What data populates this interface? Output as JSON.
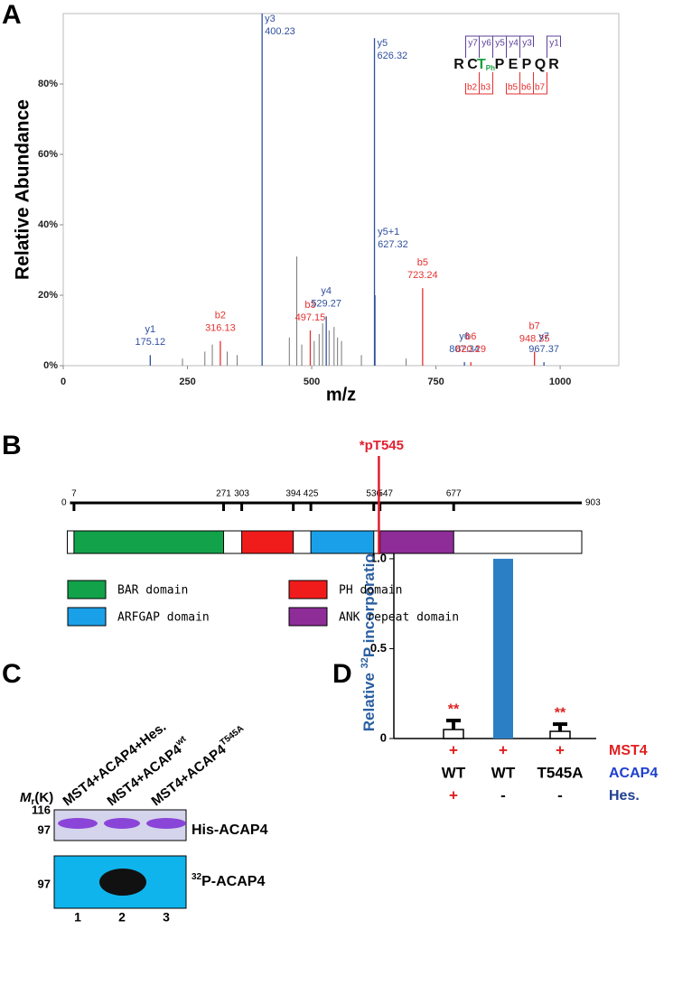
{
  "panel_labels": [
    "A",
    "B",
    "C",
    "D"
  ],
  "chart_data": [
    {
      "type": "spectrum",
      "x_label": "m/z",
      "y_label": "Relative Abundance",
      "xlim": [
        0,
        1118
      ],
      "xticks": [
        0,
        250,
        500,
        750,
        1000
      ],
      "ylim": [
        0,
        100
      ],
      "yticks": [
        {
          "value": 0,
          "label": "0%"
        },
        {
          "value": 20,
          "label": "20%"
        },
        {
          "value": 40,
          "label": "40%"
        },
        {
          "value": 60,
          "label": "60%"
        },
        {
          "value": 80,
          "label": "80%"
        }
      ],
      "peaks": [
        {
          "name": "y1",
          "mz": 175.12,
          "abundance": 3,
          "color": "#2f4f9e"
        },
        {
          "name": "b2",
          "mz": 316.13,
          "abundance": 7,
          "color": "#e53030"
        },
        {
          "name": "y3",
          "mz": 400.23,
          "abundance": 100,
          "color": "#2f4f9e"
        },
        {
          "name": "b3",
          "mz": 497.15,
          "abundance": 10,
          "color": "#e53030"
        },
        {
          "name": "y4",
          "mz": 529.27,
          "abundance": 14,
          "color": "#2f4f9e"
        },
        {
          "name": "y5",
          "mz": 626.32,
          "abundance": 93,
          "color": "#2f4f9e"
        },
        {
          "name": "y5+1",
          "mz": 627.32,
          "abundance": 20,
          "color": "#2f4f9e"
        },
        {
          "name": "b5",
          "mz": 723.24,
          "abundance": 22,
          "color": "#e53030"
        },
        {
          "name": "y6",
          "mz": 807.34,
          "abundance": 1,
          "color": "#2f4f9e"
        },
        {
          "name": "b6",
          "mz": 820.29,
          "abundance": 1,
          "color": "#e53030"
        },
        {
          "name": "b7",
          "mz": 948.35,
          "abundance": 4,
          "color": "#e53030"
        },
        {
          "name": "y7",
          "mz": 967.37,
          "abundance": 1,
          "color": "#2f4f9e"
        }
      ],
      "other_peaks": {
        "color": "#777777",
        "mz": [
          240,
          285,
          300,
          330,
          350,
          455,
          470,
          480,
          505,
          515,
          522,
          535,
          545,
          552,
          560,
          600,
          690
        ],
        "abundance": [
          2,
          4,
          6,
          4,
          3,
          8,
          31,
          6,
          7,
          9,
          12,
          10,
          11,
          8,
          7,
          3,
          2
        ]
      },
      "sequence": {
        "residues": [
          "R",
          "C",
          "T",
          "P",
          "E",
          "P",
          "Q",
          "R"
        ],
        "modified_index": 2,
        "modification": "Ph",
        "y_ions": [
          "y7",
          "y6",
          "y5",
          "y4",
          "y3",
          "y1"
        ],
        "b_ions": [
          "b2",
          "b3",
          "b5",
          "b6",
          "b7"
        ]
      }
    },
    {
      "type": "bar",
      "y_label": {
        "pre": "Relative ",
        "sup": "32",
        "post": "P incorporation"
      },
      "ylim": [
        0,
        1.12
      ],
      "yticks": [
        0,
        0.5,
        {
          "value": 1,
          "label": "1.0"
        }
      ],
      "values": [
        0.05,
        1,
        0.04
      ],
      "errors": [
        0.05,
        null,
        0.04
      ],
      "colors": [
        "#ffffff",
        "#2b80c5",
        "#ffffff"
      ],
      "annotations": [
        "**",
        null,
        "**"
      ],
      "conditions": [
        {
          "name": "MST4",
          "color": "#e02020",
          "cells": [
            "+",
            "+",
            "+"
          ],
          "cell_colors": [
            "#e02020",
            "#e02020",
            "#e02020"
          ]
        },
        {
          "name": "ACAP4",
          "color": "#1f3fd0",
          "cells": [
            "WT",
            "WT",
            "T545A"
          ],
          "cell_colors": [
            "#000000",
            "#000000",
            "#000000"
          ]
        },
        {
          "name": "Hes.",
          "color": "#1f3f90",
          "cells": [
            "+",
            "-",
            "-"
          ],
          "cell_colors": [
            "#e02020",
            "#000000",
            "#000000"
          ]
        }
      ]
    }
  ],
  "panel_b": {
    "ruler": {
      "min": 0,
      "max": 903,
      "ticks": [
        7,
        271,
        303,
        394,
        425,
        536,
        547,
        677
      ]
    },
    "site": {
      "label": "*pT545",
      "position": 545
    },
    "domains": [
      {
        "name": "BAR domain",
        "start": 7,
        "end": 271,
        "color": "#12a34a"
      },
      {
        "name": "PH domain",
        "start": 303,
        "end": 394,
        "color": "#f01c1c"
      },
      {
        "name": "ARFGAP domain",
        "start": 425,
        "end": 536,
        "color": "#1aa0e8"
      },
      {
        "name": "ANK repeat domain",
        "start": 547,
        "end": 677,
        "color": "#8e2d98"
      }
    ]
  },
  "panel_c": {
    "mr_label": {
      "text": "M",
      "sub": "r",
      "post": "(K)"
    },
    "markers_top": [
      116,
      97
    ],
    "markers_bottom": [
      97
    ],
    "lanes": [
      {
        "label": "MST4+ACAP4+Hes.",
        "sup": "",
        "number": 1
      },
      {
        "label": "MST4+ACAP4",
        "sup": "wt",
        "number": 2
      },
      {
        "label": "MST4+ACAP4",
        "sup": "T545A",
        "number": 3
      }
    ],
    "rows": [
      {
        "text": "His-ACAP4",
        "sup": ""
      },
      {
        "text": "P-ACAP4",
        "sup": "32"
      }
    ]
  }
}
